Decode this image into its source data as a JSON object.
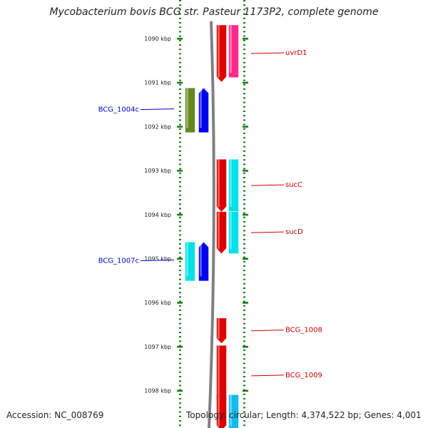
{
  "title": "Mycobacterium bovis BCG str. Pasteur 1173P2, complete genome",
  "footer": {
    "accession": "Accession: NC_008769",
    "topology": "Topology: circular; Length: 4,374,522 bp; Genes: 4,001"
  },
  "scale": {
    "unit": "kbp",
    "ticks": [
      "1090 kbp",
      "1091 kbp",
      "1092 kbp",
      "1093 kbp",
      "1094 kbp",
      "1095 kbp",
      "1096 kbp",
      "1097 kbp",
      "1098 kbp"
    ]
  },
  "colors": {
    "reverse_label": "#0000cc",
    "forward_label": "#cc0000",
    "backbone": "#808080",
    "tick_marks": "#1a7a1a"
  },
  "genes": [
    {
      "label": "uvrD1",
      "strand": "forward",
      "color": "#dd0000",
      "start_kbp": 1089.7,
      "end_kbp": 1090.98
    },
    {
      "label": "",
      "strand": "forward-outer",
      "color": "#ff2a8a",
      "start_kbp": 1089.7,
      "end_kbp": 1090.88
    },
    {
      "label": "BCG_1004c",
      "strand": "reverse-outer",
      "color": "#668822",
      "start_kbp": 1091.13,
      "end_kbp": 1092.13
    },
    {
      "label": "",
      "strand": "reverse",
      "color": "#0000ee",
      "start_kbp": 1091.13,
      "end_kbp": 1092.13
    },
    {
      "label": "sucC",
      "strand": "forward",
      "color": "#dd0000",
      "start_kbp": 1092.75,
      "end_kbp": 1093.93
    },
    {
      "label": "",
      "strand": "forward-outer",
      "color": "#00e0e8",
      "start_kbp": 1092.75,
      "end_kbp": 1093.92
    },
    {
      "label": "sucD",
      "strand": "forward",
      "color": "#dd0000",
      "start_kbp": 1093.94,
      "end_kbp": 1094.88
    },
    {
      "label": "",
      "strand": "forward-outer",
      "color": "#00e0e8",
      "start_kbp": 1093.94,
      "end_kbp": 1094.88
    },
    {
      "label": "BCG_1007c",
      "strand": "reverse-outer",
      "color": "#00e0e8",
      "start_kbp": 1094.63,
      "end_kbp": 1095.5
    },
    {
      "label": "",
      "strand": "reverse",
      "color": "#0000ee",
      "start_kbp": 1094.63,
      "end_kbp": 1095.5
    },
    {
      "label": "BCG_1008",
      "strand": "forward",
      "color": "#dd0000",
      "start_kbp": 1096.36,
      "end_kbp": 1096.92
    },
    {
      "label": "BCG_1009",
      "strand": "forward",
      "color": "#dd0000",
      "start_kbp": 1096.98,
      "end_kbp": 1098.35
    },
    {
      "label": "",
      "strand": "forward",
      "color": "#dd0000",
      "start_kbp": 1098.1,
      "end_kbp": 1098.9
    },
    {
      "label": "",
      "strand": "forward-outer",
      "color": "#11bbee",
      "start_kbp": 1098.1,
      "end_kbp": 1098.9
    }
  ]
}
